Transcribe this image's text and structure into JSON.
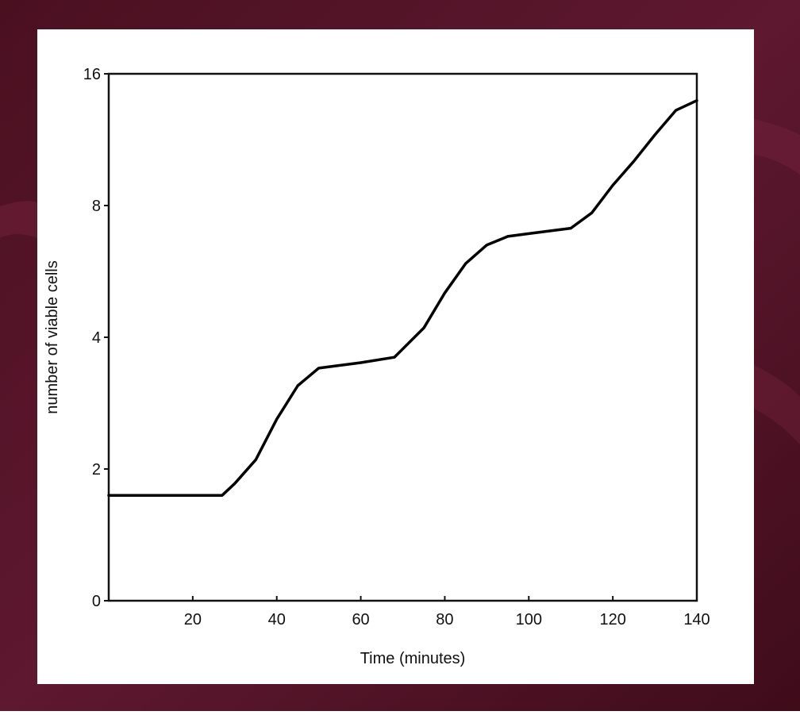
{
  "chart_data": {
    "type": "line",
    "x_label": "Time (minutes)",
    "y_label": "number of viable cells",
    "x": [
      0,
      27,
      30,
      35,
      40,
      45,
      50,
      60,
      68,
      75,
      80,
      85,
      90,
      95,
      100,
      110,
      115,
      120,
      125,
      130,
      135,
      140
    ],
    "series": [
      {
        "name": "viable cells",
        "color": "#000000",
        "values": [
          1.6,
          1.6,
          1.78,
          2.1,
          2.6,
          3.1,
          3.4,
          3.5,
          3.6,
          4.2,
          5.05,
          5.9,
          6.5,
          6.8,
          6.9,
          7.1,
          7.7,
          8.9,
          10.1,
          11.6,
          13.2,
          13.9
        ]
      }
    ],
    "xlim": [
      0,
      140
    ],
    "xticks": [
      20,
      40,
      60,
      80,
      100,
      120,
      140
    ],
    "ylim": [
      0,
      16
    ],
    "yticks": [
      0,
      2,
      4,
      8,
      16
    ],
    "y_log_between_ticks": true
  }
}
